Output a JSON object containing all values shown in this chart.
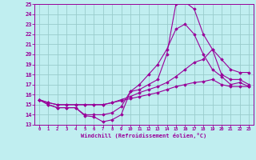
{
  "xlabel": "Windchill (Refroidissement éolien,°C)",
  "xlim": [
    -0.5,
    23.5
  ],
  "ylim": [
    13,
    25
  ],
  "xticks": [
    0,
    1,
    2,
    3,
    4,
    5,
    6,
    7,
    8,
    9,
    10,
    11,
    12,
    13,
    14,
    15,
    16,
    17,
    18,
    19,
    20,
    21,
    22,
    23
  ],
  "yticks": [
    13,
    14,
    15,
    16,
    17,
    18,
    19,
    20,
    21,
    22,
    23,
    24,
    25
  ],
  "background_color": "#c0eef0",
  "line_color": "#990099",
  "grid_color": "#99cccc",
  "lines": [
    {
      "x": [
        0,
        1,
        2,
        3,
        4,
        5,
        6,
        7,
        8,
        9,
        10,
        11,
        12,
        13,
        14,
        15,
        16,
        17,
        18,
        19,
        20,
        21,
        22,
        23
      ],
      "y": [
        15.5,
        15.0,
        14.7,
        14.7,
        14.7,
        13.9,
        13.8,
        13.3,
        13.5,
        14.0,
        16.3,
        16.5,
        17.0,
        17.5,
        20.0,
        25.0,
        25.2,
        24.5,
        22.0,
        20.5,
        18.0,
        17.5,
        17.5,
        17.0
      ]
    },
    {
      "x": [
        0,
        1,
        2,
        3,
        4,
        5,
        6,
        7,
        8,
        9,
        10,
        11,
        12,
        13,
        14,
        15,
        16,
        17,
        18,
        19,
        20,
        21,
        22,
        23
      ],
      "y": [
        15.5,
        15.0,
        14.7,
        14.7,
        14.7,
        14.0,
        14.0,
        14.0,
        14.2,
        14.8,
        16.3,
        17.0,
        18.0,
        19.0,
        20.5,
        22.5,
        23.0,
        22.0,
        20.0,
        18.5,
        17.8,
        17.0,
        17.2,
        16.8
      ]
    },
    {
      "x": [
        0,
        1,
        2,
        3,
        4,
        5,
        6,
        7,
        8,
        9,
        10,
        11,
        12,
        13,
        14,
        15,
        16,
        17,
        18,
        19,
        20,
        21,
        22,
        23
      ],
      "y": [
        15.5,
        15.2,
        15.0,
        15.0,
        15.0,
        15.0,
        15.0,
        15.0,
        15.2,
        15.5,
        15.8,
        16.2,
        16.5,
        16.8,
        17.2,
        17.8,
        18.5,
        19.2,
        19.5,
        20.5,
        19.5,
        18.5,
        18.2,
        18.2
      ]
    },
    {
      "x": [
        0,
        1,
        2,
        3,
        4,
        5,
        6,
        7,
        8,
        9,
        10,
        11,
        12,
        13,
        14,
        15,
        16,
        17,
        18,
        19,
        20,
        21,
        22,
        23
      ],
      "y": [
        15.5,
        15.2,
        15.0,
        15.0,
        15.0,
        15.0,
        15.0,
        15.0,
        15.2,
        15.4,
        15.6,
        15.8,
        16.0,
        16.2,
        16.5,
        16.8,
        17.0,
        17.2,
        17.3,
        17.5,
        17.0,
        16.8,
        16.8,
        16.8
      ]
    }
  ]
}
